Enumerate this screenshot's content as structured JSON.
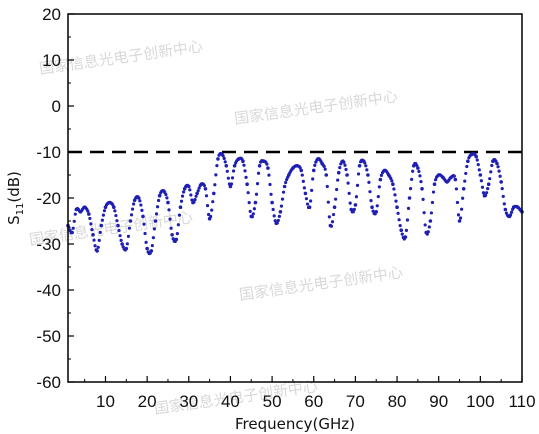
{
  "chart_data": {
    "type": "scatter",
    "xlabel": "Frequency(GHz)",
    "ylabel_main": "S",
    "ylabel_sub": "11",
    "ylabel_unit": "(dB)",
    "xlim": [
      1,
      110
    ],
    "ylim": [
      -60,
      20
    ],
    "x_ticks": [
      10,
      20,
      30,
      40,
      50,
      60,
      70,
      80,
      90,
      100,
      110
    ],
    "y_ticks": [
      20,
      10,
      0,
      -10,
      -20,
      -30,
      -40,
      -50,
      -60
    ],
    "reference_line": {
      "y": -10,
      "style": "dashed",
      "color": "#000000"
    },
    "series_color": "#1f1fb4",
    "watermarks": [
      "国家信息光电子创新中心",
      "国家信息光电子创新中心",
      "国家信息光电子创新中心",
      "国家信息光电子创新中心",
      "国家信息光电子创新中心"
    ],
    "series": [
      {
        "points": [
          [
            1,
            -26
          ],
          [
            2,
            -27.5
          ],
          [
            3,
            -22.5
          ],
          [
            4,
            -23
          ],
          [
            5,
            -22
          ],
          [
            6,
            -23.5
          ],
          [
            7,
            -28
          ],
          [
            8,
            -31.5
          ],
          [
            9,
            -26
          ],
          [
            10,
            -22
          ],
          [
            11,
            -21
          ],
          [
            12,
            -22
          ],
          [
            13,
            -26
          ],
          [
            14,
            -30
          ],
          [
            15,
            -31
          ],
          [
            16,
            -25
          ],
          [
            17,
            -20.5
          ],
          [
            18,
            -20
          ],
          [
            19,
            -24
          ],
          [
            20,
            -31
          ],
          [
            21,
            -31.5
          ],
          [
            22,
            -25
          ],
          [
            23,
            -19.5
          ],
          [
            24,
            -18.5
          ],
          [
            25,
            -21
          ],
          [
            26,
            -28
          ],
          [
            27,
            -29
          ],
          [
            28,
            -22
          ],
          [
            29,
            -18
          ],
          [
            30,
            -17.5
          ],
          [
            31,
            -21
          ],
          [
            32,
            -19
          ],
          [
            33,
            -17
          ],
          [
            34,
            -18
          ],
          [
            35,
            -24.5
          ],
          [
            36,
            -19
          ],
          [
            37,
            -11.5
          ],
          [
            38,
            -10.5
          ],
          [
            39,
            -13
          ],
          [
            40,
            -17.5
          ],
          [
            41,
            -13
          ],
          [
            42,
            -11.5
          ],
          [
            43,
            -12
          ],
          [
            44,
            -17
          ],
          [
            45,
            -24
          ],
          [
            46,
            -21
          ],
          [
            47,
            -13
          ],
          [
            48,
            -12
          ],
          [
            49,
            -13.5
          ],
          [
            50,
            -21
          ],
          [
            51,
            -25.5
          ],
          [
            52,
            -23
          ],
          [
            53,
            -17.5
          ],
          [
            54,
            -15
          ],
          [
            55,
            -13.5
          ],
          [
            56,
            -13
          ],
          [
            57,
            -14
          ],
          [
            58,
            -19
          ],
          [
            59,
            -22
          ],
          [
            60,
            -14
          ],
          [
            61,
            -11.5
          ],
          [
            62,
            -12.5
          ],
          [
            63,
            -15
          ],
          [
            64,
            -26
          ],
          [
            65,
            -22
          ],
          [
            66,
            -14.5
          ],
          [
            67,
            -12
          ],
          [
            68,
            -15
          ],
          [
            69,
            -22.5
          ],
          [
            70,
            -21.5
          ],
          [
            71,
            -13
          ],
          [
            72,
            -12
          ],
          [
            73,
            -15
          ],
          [
            74,
            -22
          ],
          [
            75,
            -23
          ],
          [
            76,
            -16
          ],
          [
            77,
            -14
          ],
          [
            78,
            -15
          ],
          [
            79,
            -17
          ],
          [
            80,
            -22
          ],
          [
            81,
            -27
          ],
          [
            82,
            -28.5
          ],
          [
            83,
            -20
          ],
          [
            84,
            -13
          ],
          [
            85,
            -13.5
          ],
          [
            86,
            -18
          ],
          [
            87,
            -27.5
          ],
          [
            88,
            -25
          ],
          [
            89,
            -17
          ],
          [
            90,
            -15
          ],
          [
            91,
            -15.5
          ],
          [
            92,
            -16.5
          ],
          [
            93,
            -15.5
          ],
          [
            94,
            -16
          ],
          [
            95,
            -25
          ],
          [
            96,
            -18
          ],
          [
            97,
            -12
          ],
          [
            98,
            -10.5
          ],
          [
            99,
            -11
          ],
          [
            100,
            -15
          ],
          [
            101,
            -19.5
          ],
          [
            102,
            -17
          ],
          [
            103,
            -12
          ],
          [
            104,
            -12.5
          ],
          [
            105,
            -16.5
          ],
          [
            106,
            -22.5
          ],
          [
            107,
            -24
          ],
          [
            108,
            -22
          ],
          [
            109,
            -22
          ],
          [
            110,
            -23
          ]
        ]
      }
    ]
  }
}
